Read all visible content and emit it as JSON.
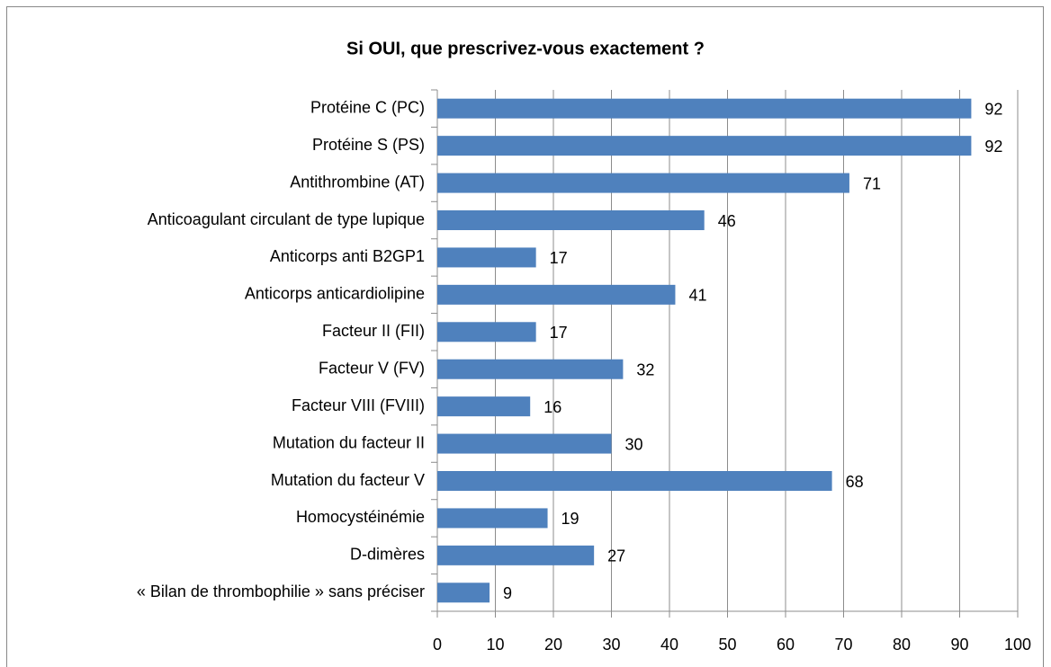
{
  "chart_data": {
    "type": "bar",
    "title": "Si OUI, que prescrivez-vous exactement ?",
    "categories": [
      "Protéine C (PC)",
      "Protéine S (PS)",
      "Antithrombine  (AT)",
      "Anticoagulant circulant de type lupique",
      "Anticorps anti B2GP1",
      "Anticorps anticardiolipine",
      "Facteur II (FII)",
      "Facteur V (FV)",
      "Facteur VIII (FVIII)",
      "Mutation du facteur II",
      "Mutation du facteur V",
      "Homocystéinémie",
      "D-dimères",
      "« Bilan de thrombophilie » sans préciser"
    ],
    "values": [
      92,
      92,
      71,
      46,
      17,
      41,
      17,
      32,
      16,
      30,
      68,
      19,
      27,
      9
    ],
    "color": "#4f81bd",
    "xlim": [
      0,
      100
    ],
    "xticks": [
      0,
      10,
      20,
      30,
      40,
      50,
      60,
      70,
      80,
      90,
      100
    ],
    "grid": true
  }
}
